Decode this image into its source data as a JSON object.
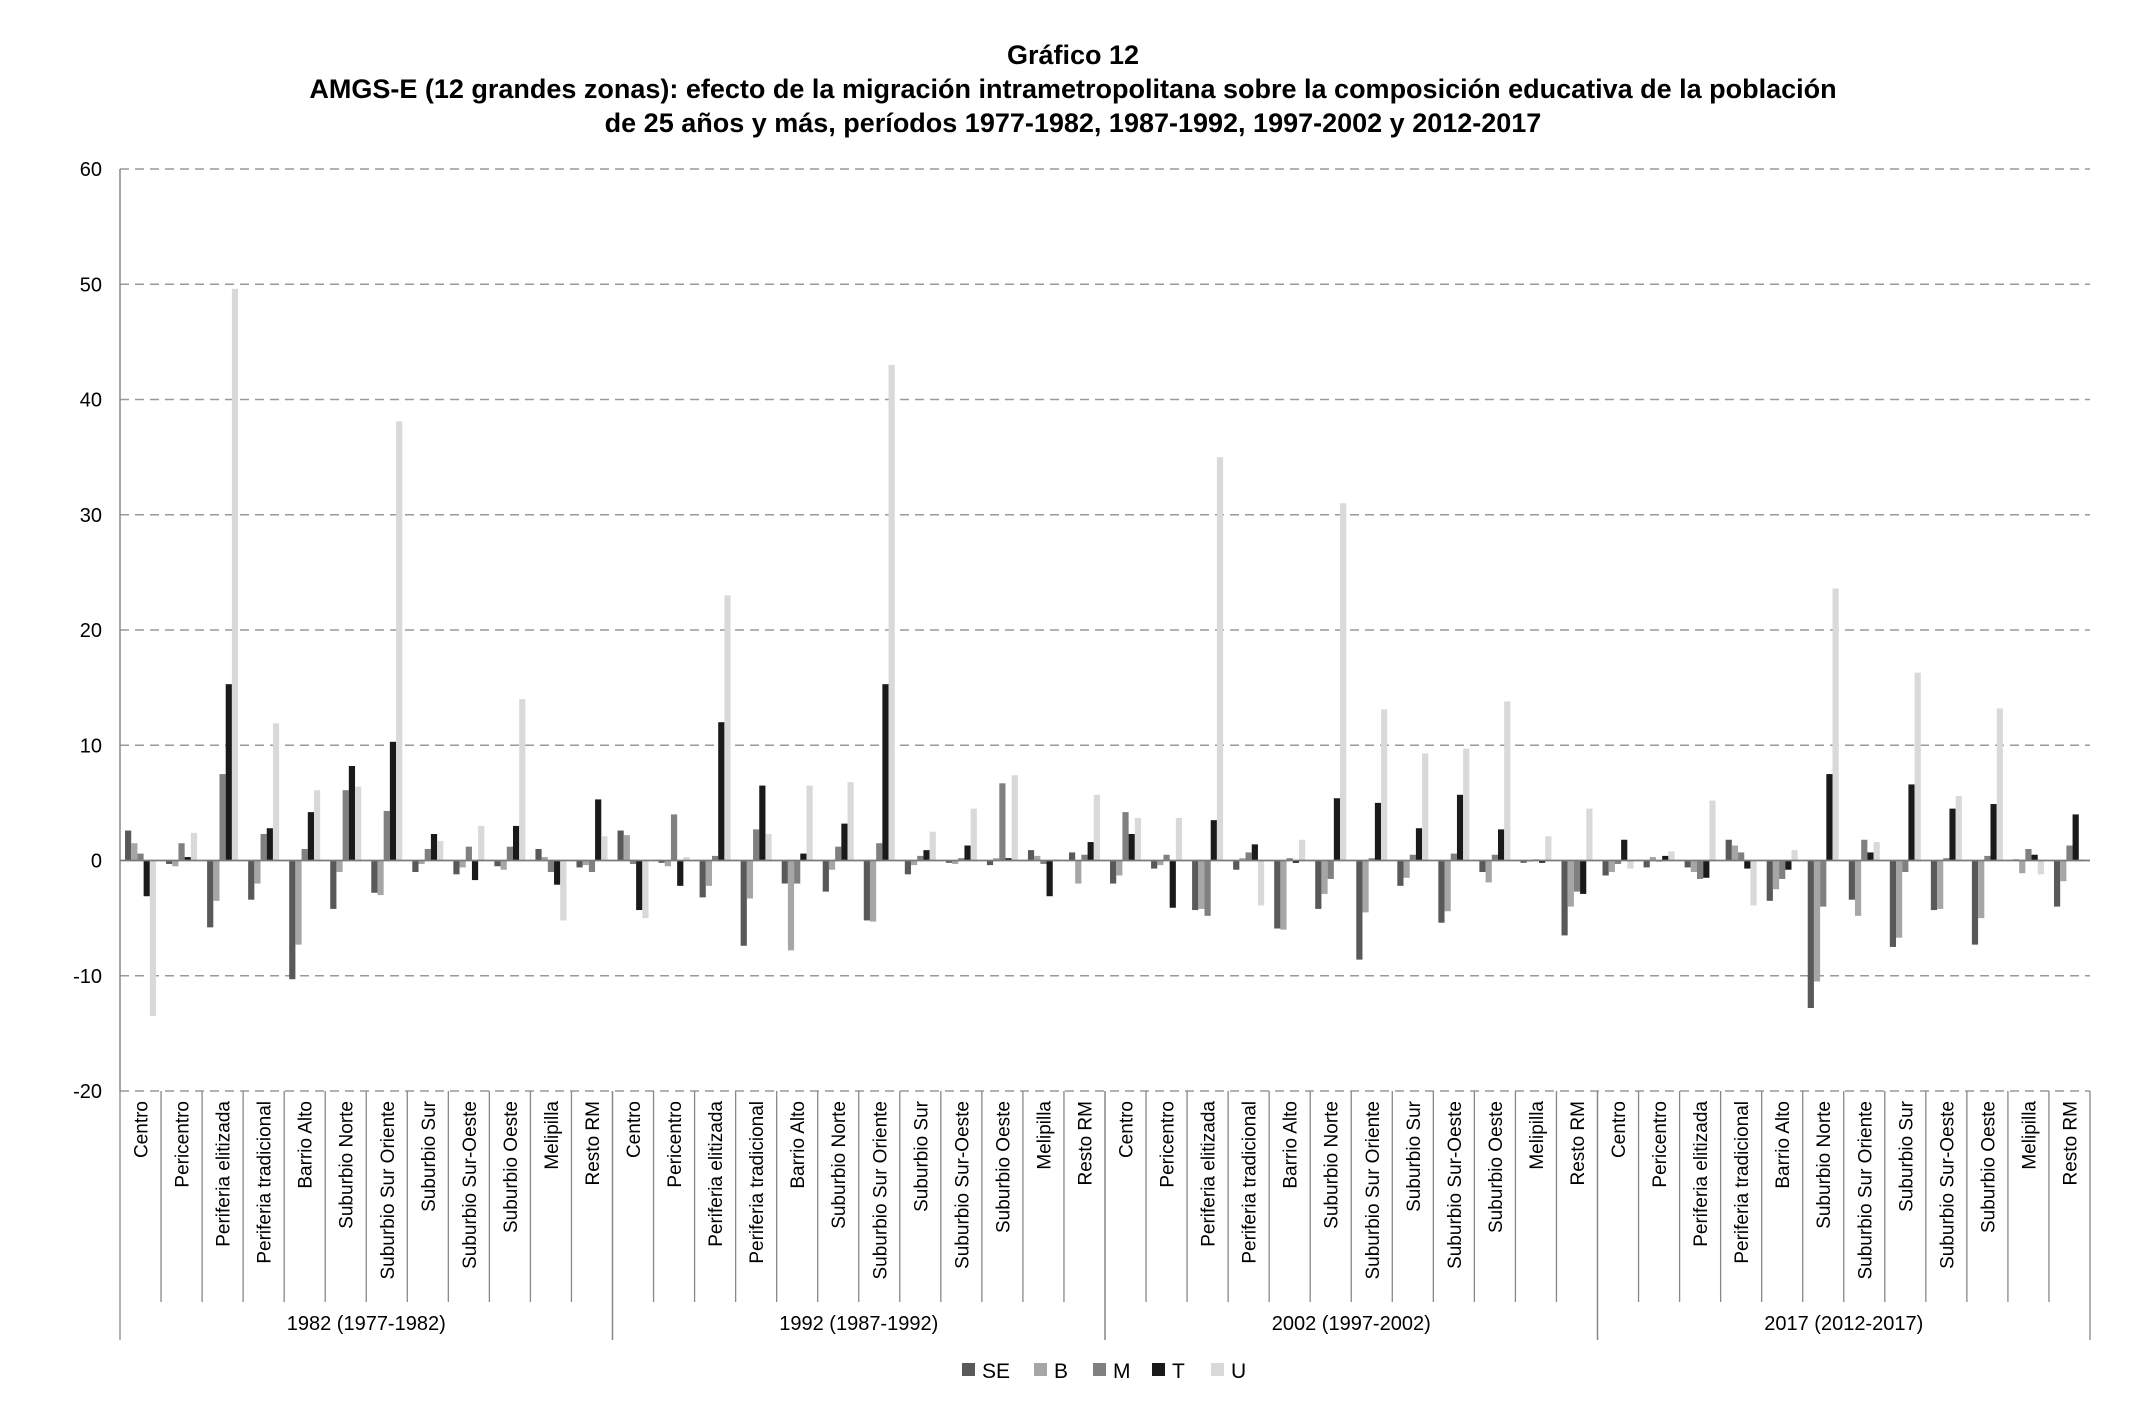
{
  "chart_data": {
    "type": "bar",
    "title": "Gráfico 12",
    "subtitle": [
      "AMGS-E (12 grandes zonas): efecto de la migración intrametropolitana sobre la composición educativa de la población",
      "de 25 años y más, períodos 1977-1982, 1987-1992, 1997-2002 y 2012-2017"
    ],
    "xlabel": "",
    "ylabel": "",
    "ylim": [
      -20,
      60
    ],
    "yticks": [
      60,
      50,
      40,
      30,
      20,
      10,
      0,
      -10,
      -20
    ],
    "grid": true,
    "legend_position": "bottom",
    "zones": [
      "Centro",
      "Pericentro",
      "Periferia elitizada",
      "Periferia tradicional",
      "Barrio Alto",
      "Suburbio Norte",
      "Suburbio Sur Oriente",
      "Suburbio Sur",
      "Suburbio Sur-Oeste",
      "Suburbio Oeste",
      "Melipilla",
      "Resto RM"
    ],
    "periods": [
      "1982 (1977-1982)",
      "1992 (1987-1992)",
      "2002 (1997-2002)",
      "2017 (2012-2017)"
    ],
    "series": [
      {
        "name": "SE",
        "color": "#595959"
      },
      {
        "name": "B",
        "color": "#a6a6a6"
      },
      {
        "name": "M",
        "color": "#808080"
      },
      {
        "name": "T",
        "color": "#1a1a1a"
      },
      {
        "name": "U",
        "color": "#d9d9d9"
      }
    ],
    "values": [
      [
        [
          2.6,
          1.5,
          0.6,
          -3.1,
          -13.5
        ],
        [
          -0.3,
          -0.5,
          1.5,
          0.3,
          2.4
        ],
        [
          -5.8,
          -3.5,
          7.5,
          15.3,
          49.6
        ],
        [
          -3.4,
          -2.0,
          2.3,
          2.8,
          11.9
        ],
        [
          -10.3,
          -7.3,
          1.0,
          4.2,
          6.1
        ],
        [
          -4.2,
          -1.0,
          6.1,
          8.2,
          6.4
        ],
        [
          -2.8,
          -3.0,
          4.3,
          10.3,
          38.1
        ],
        [
          -1.0,
          -0.3,
          1.0,
          2.3,
          1.7
        ],
        [
          -1.2,
          -0.6,
          1.2,
          -1.7,
          3.0
        ],
        [
          -0.5,
          -0.8,
          1.2,
          3.0,
          14.0
        ],
        [
          1.0,
          0.3,
          -1.0,
          -2.1,
          -5.2
        ],
        [
          -0.6,
          -0.4,
          -1.0,
          5.3,
          2.1
        ]
      ],
      [
        [
          2.6,
          2.2,
          -0.3,
          -4.3,
          -5.0
        ],
        [
          -0.2,
          -0.5,
          4.0,
          -2.2,
          0.3
        ],
        [
          -3.2,
          -2.2,
          0.4,
          12.0,
          23.0
        ],
        [
          -7.4,
          -3.3,
          2.7,
          6.5,
          2.3
        ],
        [
          -2.0,
          -7.8,
          -2.0,
          0.6,
          6.5
        ],
        [
          -2.7,
          -0.8,
          1.2,
          3.2,
          6.8
        ],
        [
          -5.2,
          -5.3,
          1.5,
          15.3,
          43.0
        ],
        [
          -1.2,
          -0.4,
          0.4,
          0.9,
          2.5
        ],
        [
          -0.2,
          -0.3,
          0.2,
          1.3,
          4.5
        ],
        [
          -0.4,
          0.2,
          6.7,
          0.2,
          7.4
        ],
        [
          0.9,
          0.4,
          -0.3,
          -3.1,
          0.1
        ],
        [
          0.7,
          -2.0,
          0.5,
          1.6,
          5.7
        ]
      ],
      [
        [
          -2.0,
          -1.3,
          4.2,
          2.3,
          3.7
        ],
        [
          -0.7,
          -0.4,
          0.5,
          -4.1,
          3.7
        ],
        [
          -4.3,
          -4.2,
          -4.8,
          3.5,
          35.0
        ],
        [
          -0.8,
          0.2,
          0.7,
          1.4,
          -3.9
        ],
        [
          -5.9,
          -6.0,
          0.2,
          -0.2,
          1.8
        ],
        [
          -4.2,
          -2.9,
          -1.6,
          5.4,
          31.0
        ],
        [
          -8.6,
          -4.5,
          0.2,
          5.0,
          13.1
        ],
        [
          -2.2,
          -1.5,
          0.5,
          2.8,
          9.3
        ],
        [
          -5.4,
          -4.4,
          0.6,
          5.7,
          9.7
        ],
        [
          -1.0,
          -1.9,
          0.5,
          2.7,
          13.8
        ],
        [
          -0.2,
          -0.1,
          0.1,
          -0.2,
          2.1
        ],
        [
          -6.5,
          -4.0,
          -2.7,
          -2.9,
          4.5
        ]
      ],
      [
        [
          -1.3,
          -1.0,
          -0.3,
          1.8,
          -0.7
        ],
        [
          -0.6,
          0.3,
          -0.1,
          0.4,
          0.8
        ],
        [
          -0.6,
          -1.0,
          -1.6,
          -1.5,
          5.2
        ],
        [
          1.8,
          1.3,
          0.7,
          -0.7,
          -3.9
        ],
        [
          -3.5,
          -2.5,
          -1.6,
          -0.8,
          0.9
        ],
        [
          -12.8,
          -10.5,
          -4.0,
          7.5,
          23.6
        ],
        [
          -3.4,
          -4.8,
          1.8,
          0.7,
          1.6
        ],
        [
          -7.5,
          -6.7,
          -1.0,
          6.6,
          16.3
        ],
        [
          -4.3,
          -4.2,
          0.2,
          4.5,
          5.6
        ],
        [
          -7.3,
          -5.0,
          0.4,
          4.9,
          13.2
        ],
        [
          0.1,
          -1.1,
          1.0,
          0.5,
          -1.2
        ],
        [
          -4.0,
          -1.8,
          1.3,
          4.0,
          0.1
        ]
      ]
    ]
  }
}
